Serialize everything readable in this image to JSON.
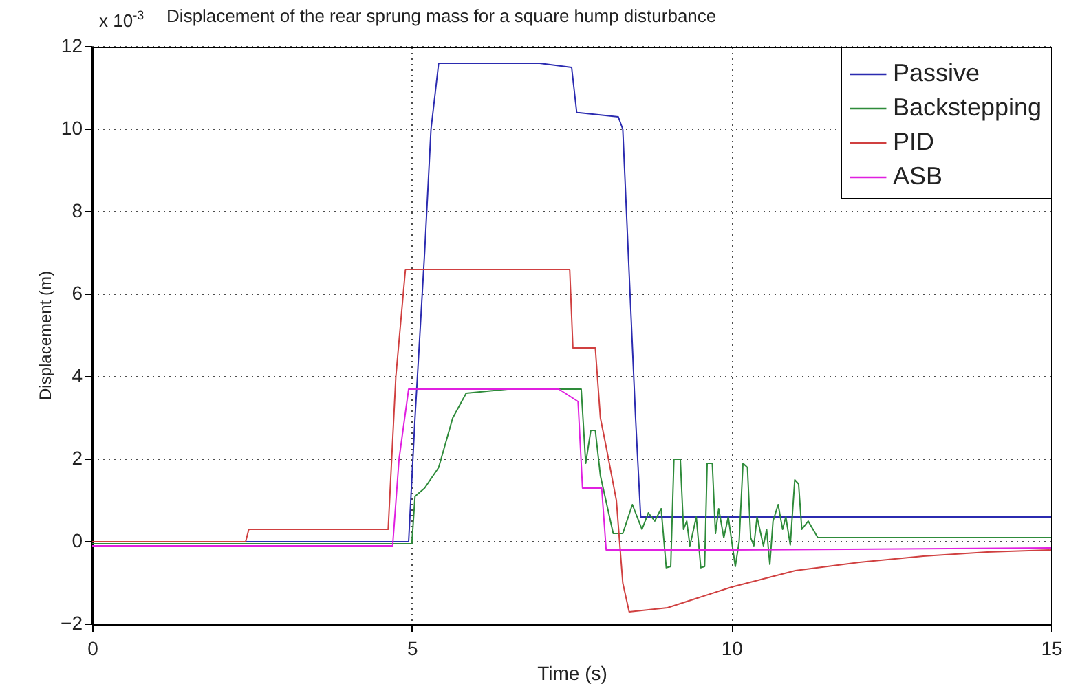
{
  "chart_data": {
    "type": "line",
    "title": "Displacement of the rear sprung mass for a square hump disturbance",
    "xlabel": "Time (s)",
    "ylabel": "Displacement (m)",
    "annotations": [
      "x 10$^{-3}$"
    ],
    "xlim": [
      0,
      15
    ],
    "xticks": [
      0,
      5,
      10,
      15
    ],
    "ylim": [
      -2,
      12
    ],
    "yticks": [
      -2,
      0,
      2,
      4,
      6,
      8,
      10,
      12
    ],
    "grid": true,
    "legend": "top right",
    "series": [
      {
        "name": "Passive",
        "color": "#2b2bb0",
        "x": [
          0,
          4.95,
          5.05,
          5.2,
          5.3,
          5.42,
          6,
          7,
          7.5,
          7.58,
          7.62,
          8.23,
          8.3,
          8.5,
          8.58,
          9,
          15
        ],
        "values": [
          0,
          0,
          3,
          7,
          10,
          11.6,
          11.6,
          11.6,
          11.5,
          10.4,
          10.4,
          10.3,
          10,
          3,
          0.6,
          0.6,
          0.6
        ]
      },
      {
        "name": "Backstepping",
        "color": "#2e8b3a",
        "x": [
          0,
          5,
          5.05,
          5.2,
          5.42,
          5.64,
          5.85,
          6.5,
          7.65,
          7.72,
          7.8,
          7.87,
          7.95,
          8.05,
          8.15,
          8.3,
          8.45,
          8.6,
          8.7,
          8.8,
          8.9,
          8.98,
          9.05,
          9.1,
          9.2,
          9.25,
          9.3,
          9.35,
          9.45,
          9.52,
          9.58,
          9.62,
          9.7,
          9.75,
          9.8,
          9.88,
          9.95,
          10.06,
          10.12,
          10.18,
          10.25,
          10.3,
          10.35,
          10.4,
          10.5,
          10.55,
          10.6,
          10.65,
          10.73,
          10.8,
          10.85,
          10.92,
          10.99,
          11.05,
          11.1,
          11.2,
          11.35,
          15
        ],
        "values": [
          -0.05,
          -0.05,
          1.1,
          1.3,
          1.8,
          3,
          3.6,
          3.7,
          3.7,
          1.9,
          2.7,
          2.7,
          1.6,
          0.9,
          0.2,
          0.2,
          0.9,
          0.3,
          0.7,
          0.5,
          0.8,
          -0.63,
          -0.6,
          2,
          2,
          0.3,
          0.5,
          -0.1,
          0.6,
          -0.63,
          -0.6,
          1.9,
          1.9,
          0.2,
          0.8,
          0.1,
          0.6,
          -0.6,
          0,
          1.9,
          1.8,
          0.1,
          -0.1,
          0.6,
          -0.1,
          0.3,
          -0.55,
          0.5,
          0.9,
          0.3,
          0.6,
          -0.08,
          1.5,
          1.4,
          0.3,
          0.5,
          0.1,
          0.1
        ]
      },
      {
        "name": "PID",
        "color": "#d04040",
        "x": [
          0,
          2.4,
          2.45,
          4.63,
          4.75,
          4.9,
          6,
          7.47,
          7.52,
          7.87,
          7.95,
          8.04,
          8.2,
          8.3,
          8.4,
          9,
          10,
          11,
          12,
          13,
          14,
          15
        ],
        "values": [
          0,
          0,
          0.3,
          0.3,
          4,
          6.6,
          6.6,
          6.6,
          4.7,
          4.7,
          3,
          2.3,
          1,
          -1,
          -1.7,
          -1.6,
          -1.1,
          -0.7,
          -0.5,
          -0.35,
          -0.25,
          -0.2
        ]
      },
      {
        "name": "ASB",
        "color": "#e020e0",
        "x": [
          0,
          4.7,
          4.8,
          4.95,
          6,
          7.3,
          7.6,
          7.67,
          7.97,
          8.04,
          10,
          15
        ],
        "values": [
          -0.1,
          -0.1,
          2,
          3.7,
          3.7,
          3.7,
          3.4,
          1.3,
          1.3,
          -0.2,
          -0.2,
          -0.15
        ]
      }
    ]
  }
}
